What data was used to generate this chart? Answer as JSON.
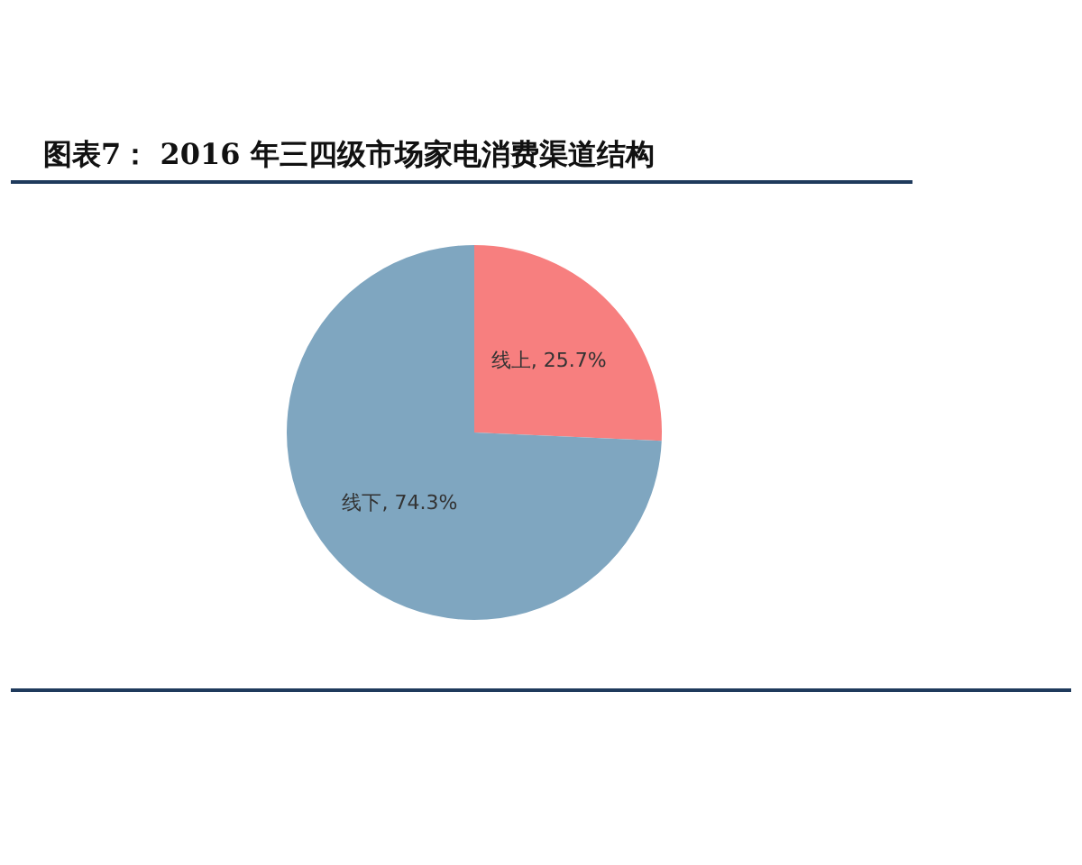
{
  "chart_data": {
    "type": "pie",
    "title": "图表7： 2016 年三四级市场家电消费渠道结构",
    "categories": [
      "线上",
      "线下"
    ],
    "values": [
      25.7,
      74.3
    ],
    "colors": [
      "#f77f7f",
      "#7fa6c0"
    ],
    "value_labels": [
      "25.7%",
      "74.3%"
    ],
    "legend": false
  }
}
